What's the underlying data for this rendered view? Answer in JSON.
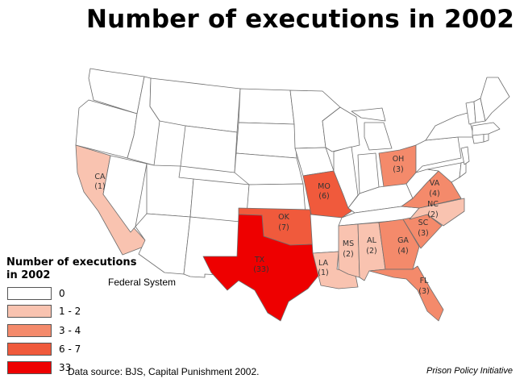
{
  "title": "Number of executions in 2002",
  "legend": {
    "title_line1": "Number of executions",
    "title_line2": "in 2002",
    "classes": [
      {
        "label": "0",
        "color": "#ffffff"
      },
      {
        "label": "1 - 2",
        "color": "#f9c3b0"
      },
      {
        "label": "3 - 4",
        "color": "#f48a6b"
      },
      {
        "label": "6 - 7",
        "color": "#f05a3c"
      },
      {
        "label": "33",
        "color": "#ee0000"
      }
    ]
  },
  "federal_label": "Federal System",
  "source": "Data source: BJS, Capital Punishment 2002.",
  "credit": "Prison Policy Initiative",
  "states": {
    "CA": {
      "abbr": "CA",
      "count": "(1)",
      "executions": 1
    },
    "TX": {
      "abbr": "TX",
      "count": "(33)",
      "executions": 33
    },
    "OK": {
      "abbr": "OK",
      "count": "(7)",
      "executions": 7
    },
    "MO": {
      "abbr": "MO",
      "count": "(6)",
      "executions": 6
    },
    "LA": {
      "abbr": "LA",
      "count": "(1)",
      "executions": 1
    },
    "MS": {
      "abbr": "MS",
      "count": "(2)",
      "executions": 2
    },
    "AL": {
      "abbr": "AL",
      "count": "(2)",
      "executions": 2
    },
    "GA": {
      "abbr": "GA",
      "count": "(4)",
      "executions": 4
    },
    "FL": {
      "abbr": "FL",
      "count": "(3)",
      "executions": 3
    },
    "SC": {
      "abbr": "SC",
      "count": "(3)",
      "executions": 3
    },
    "NC": {
      "abbr": "NC",
      "count": "(2)",
      "executions": 2
    },
    "VA": {
      "abbr": "VA",
      "count": "(4)",
      "executions": 4
    },
    "OH": {
      "abbr": "OH",
      "count": "(3)",
      "executions": 3
    }
  }
}
